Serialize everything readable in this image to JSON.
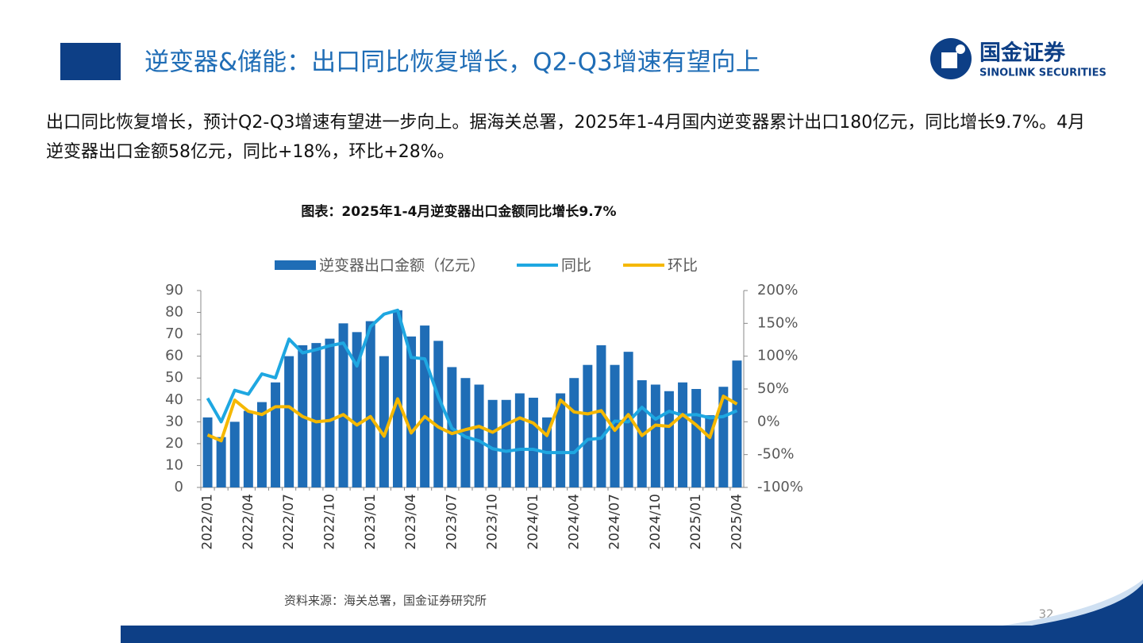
{
  "header": {
    "title": "逆变器&储能：出口同比恢复增长，Q2-Q3增速有望向上"
  },
  "logo": {
    "name": "国金证券",
    "english": "SINOLINK SECURITIES"
  },
  "body": {
    "paragraph": "出口同比恢复增长，预计Q2-Q3增速有望进一步向上。据海关总署，2025年1-4月国内逆变器累计出口180亿元，同比增长9.7%。4月逆变器出口金额58亿元，同比+18%，环比+28%。"
  },
  "chart_data": {
    "type": "bar",
    "title": "图表：2025年1-4月逆变器出口金额同比增长9.7%",
    "categories": [
      "2022/01",
      null,
      null,
      "2022/04",
      null,
      null,
      "2022/07",
      null,
      null,
      "2022/10",
      null,
      null,
      "2023/01",
      null,
      null,
      "2023/04",
      null,
      null,
      "2023/07",
      null,
      null,
      "2023/10",
      null,
      null,
      "2024/01",
      null,
      null,
      "2024/04",
      null,
      null,
      "2024/07",
      null,
      null,
      "2024/10",
      null,
      null,
      "2025/01",
      null,
      null,
      "2025/04"
    ],
    "series": [
      {
        "name": "逆变器出口金额（亿元）",
        "type": "bar",
        "color": "#1f6db6",
        "values": [
          32,
          23,
          30,
          35,
          39,
          48,
          60,
          65,
          66,
          68,
          75,
          71,
          76,
          60,
          81,
          69,
          74,
          67,
          55,
          50,
          47,
          40,
          40,
          43,
          41,
          32,
          43,
          50,
          56,
          65,
          56,
          62,
          49,
          47,
          44,
          48,
          45,
          33,
          46,
          58
        ]
      },
      {
        "name": "同比",
        "type": "line",
        "axis": "y2",
        "color": "#1ea7e1",
        "values": [
          36,
          0,
          48,
          42,
          73,
          67,
          126,
          105,
          110,
          116,
          120,
          85,
          145,
          164,
          170,
          98,
          96,
          38,
          -10,
          -23,
          -29,
          -41,
          -45,
          -42,
          -42,
          -47,
          -47,
          -47,
          -27,
          -25,
          1,
          0,
          22,
          4,
          16,
          10,
          11,
          6,
          8,
          17
        ]
      },
      {
        "name": "环比",
        "type": "line",
        "axis": "y2",
        "color": "#f5b800",
        "values": [
          -20,
          -29,
          33,
          16,
          11,
          23,
          23,
          8,
          0,
          2,
          11,
          -5,
          8,
          -22,
          35,
          -17,
          8,
          -8,
          -18,
          -12,
          -7,
          -16,
          -4,
          6,
          -2,
          -21,
          33,
          15,
          12,
          17,
          -13,
          11,
          -21,
          -5,
          -7,
          11,
          -5,
          -24,
          39,
          27
        ]
      }
    ],
    "ylim": [
      0,
      90
    ],
    "yticks": [
      0,
      10,
      20,
      30,
      40,
      50,
      60,
      70,
      80,
      90
    ],
    "y2lim": [
      -100,
      200
    ],
    "y2ticks": [
      {
        "value": -100,
        "label": "-100%"
      },
      {
        "value": -50,
        "label": "-50%"
      },
      {
        "value": 0,
        "label": "0%"
      },
      {
        "value": 50,
        "label": "50%"
      },
      {
        "value": 100,
        "label": "100%"
      },
      {
        "value": 150,
        "label": "150%"
      },
      {
        "value": 200,
        "label": "200%"
      }
    ],
    "legend": "top"
  },
  "source": "资料来源：海关总署，国金证券研究所",
  "page_number": "32"
}
